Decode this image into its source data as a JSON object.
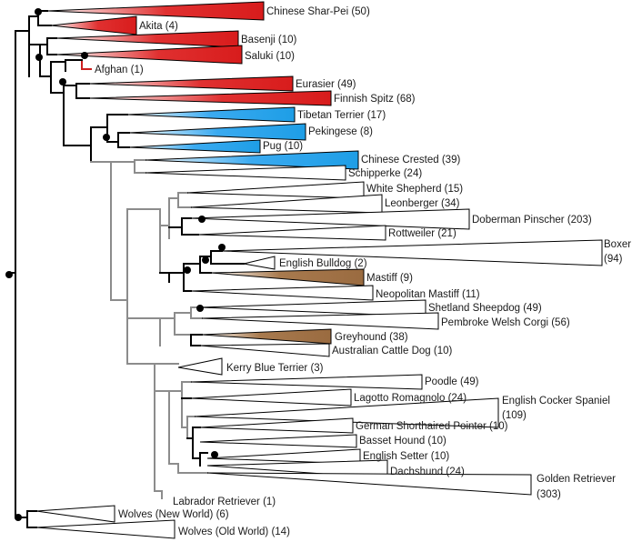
{
  "colors": {
    "red": "#d81c1c",
    "blue": "#1e9ee6",
    "brown": "#9a6b40",
    "white": "#ffffff",
    "black_branch": "#000000",
    "grey_branch": "#8c8c8c"
  },
  "clades": [
    {
      "id": "shar-pei",
      "label": "Chinese Shar-Pei (50)",
      "color": "red"
    },
    {
      "id": "akita",
      "label": "Akita (4)",
      "color": "red"
    },
    {
      "id": "basenji",
      "label": "Basenji (10)",
      "color": "red"
    },
    {
      "id": "saluki",
      "label": "Saluki (10)",
      "color": "red"
    },
    {
      "id": "afghan",
      "label": "Afghan (1)",
      "color": "red"
    },
    {
      "id": "eurasier",
      "label": "Eurasier (49)",
      "color": "red"
    },
    {
      "id": "finnish-spitz",
      "label": "Finnish Spitz (68)",
      "color": "red"
    },
    {
      "id": "tibetan-terrier",
      "label": "Tibetan Terrier (17)",
      "color": "blue"
    },
    {
      "id": "pekingese",
      "label": "Pekingese (8)",
      "color": "blue"
    },
    {
      "id": "pug",
      "label": "Pug (10)",
      "color": "blue"
    },
    {
      "id": "chinese-crested",
      "label": "Chinese Crested (39)",
      "color": "blue"
    },
    {
      "id": "schipperke",
      "label": "Schipperke (24)",
      "color": "white"
    },
    {
      "id": "white-shepherd",
      "label": "White Shepherd (15)",
      "color": "white"
    },
    {
      "id": "leonberger",
      "label": "Leonberger (34)",
      "color": "white"
    },
    {
      "id": "doberman",
      "label": "Doberman Pinscher (203)",
      "color": "white"
    },
    {
      "id": "rottweiler",
      "label": "Rottweiler (21)",
      "color": "white"
    },
    {
      "id": "boxer",
      "label": "Boxer",
      "label2": "(94)",
      "color": "white"
    },
    {
      "id": "english-bulldog",
      "label": "English Bulldog (2)",
      "color": "white"
    },
    {
      "id": "mastiff",
      "label": "Mastiff (9)",
      "color": "brown"
    },
    {
      "id": "neopolitan-mastiff",
      "label": "Neopolitan Mastiff (11)",
      "color": "white"
    },
    {
      "id": "shetland-sheepdog",
      "label": "Shetland Sheepdog (49)",
      "color": "white"
    },
    {
      "id": "pembroke-corgi",
      "label": "Pembroke Welsh Corgi (56)",
      "color": "white"
    },
    {
      "id": "greyhound",
      "label": "Greyhound (38)",
      "color": "brown"
    },
    {
      "id": "australian-cattle-dog",
      "label": "Australian Cattle Dog (10)",
      "color": "white"
    },
    {
      "id": "kerry-blue-terrier",
      "label": "Kerry Blue Terrier (3)",
      "color": "white"
    },
    {
      "id": "poodle",
      "label": "Poodle (49)",
      "color": "white"
    },
    {
      "id": "lagotto",
      "label": "Lagotto Romagnolo (24)",
      "color": "white"
    },
    {
      "id": "english-cocker",
      "label": "English Cocker Spaniel",
      "label2": "(109)",
      "color": "white"
    },
    {
      "id": "german-shorthaired",
      "label": "German Shorthaired Pointer (10)",
      "color": "white"
    },
    {
      "id": "basset-hound",
      "label": "Basset Hound (10)",
      "color": "white"
    },
    {
      "id": "english-setter",
      "label": "English Setter (10)",
      "color": "white"
    },
    {
      "id": "dachshund",
      "label": "Dachshund (24)",
      "color": "white"
    },
    {
      "id": "golden-retriever",
      "label": "Golden Retriever",
      "label2": "(303)",
      "color": "white"
    },
    {
      "id": "labrador",
      "label": "Labrador Retriever (1)",
      "color": "white"
    },
    {
      "id": "wolves-new",
      "label": "Wolves (New World) (6)",
      "color": "white"
    },
    {
      "id": "wolves-old",
      "label": "Wolves (Old World) (14)",
      "color": "white"
    }
  ]
}
